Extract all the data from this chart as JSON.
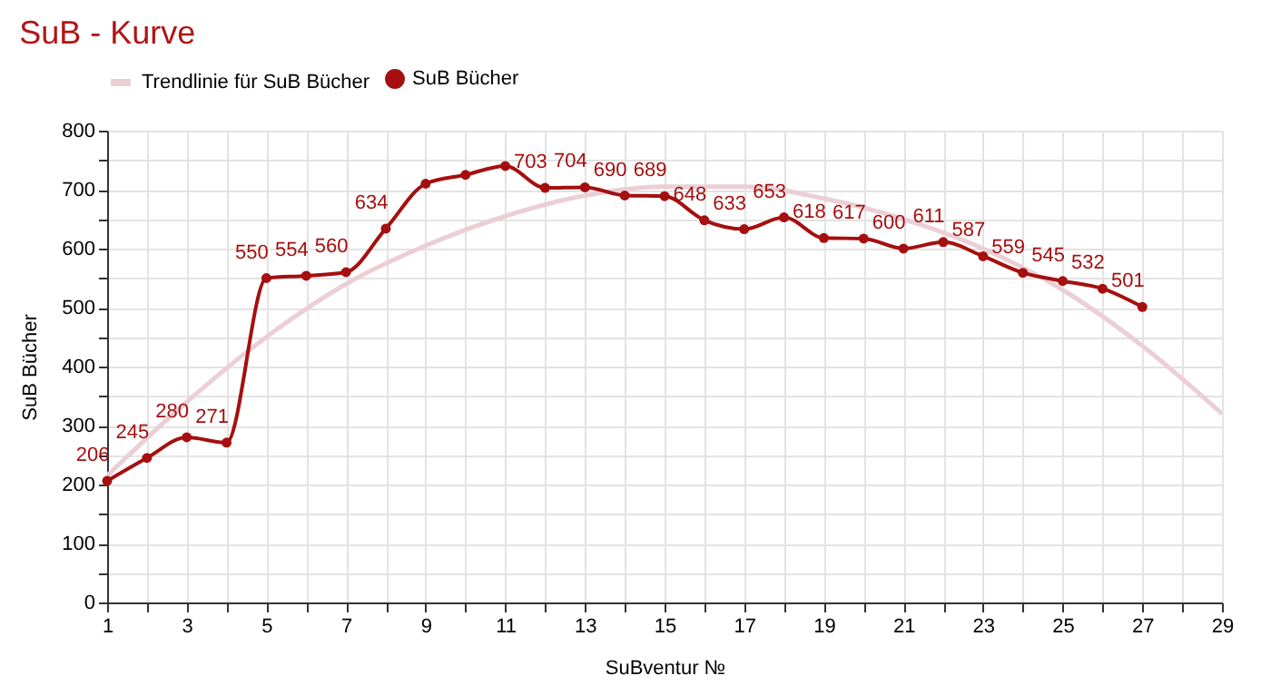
{
  "chart_data": {
    "type": "line",
    "title": "SuB - Kurve",
    "xlabel": "SuBventur №",
    "ylabel": "SuB Bücher",
    "x": [
      1,
      2,
      3,
      4,
      5,
      6,
      7,
      8,
      9,
      10,
      11,
      12,
      13,
      14,
      15,
      16,
      17,
      18,
      19,
      20,
      21,
      22,
      23,
      24,
      25,
      26,
      27
    ],
    "series": [
      {
        "name": "SuB Bücher",
        "color": "#a50f0f",
        "marker": "circle",
        "values": [
          206,
          245,
          280,
          271,
          550,
          554,
          560,
          634,
          710,
          725,
          740,
          703,
          704,
          690,
          689,
          648,
          633,
          653,
          618,
          617,
          600,
          611,
          587,
          559,
          545,
          532,
          501
        ],
        "value_labels": [
          "206",
          "245",
          "280",
          "271",
          "550",
          "554",
          "560",
          "634",
          null,
          null,
          null,
          "703",
          "704",
          "690",
          "689",
          "648",
          "633",
          "653",
          "618",
          "617",
          "600",
          "611",
          "587",
          "559",
          "545",
          "532",
          "501"
        ]
      },
      {
        "name": "Trendlinie für SuB Bücher",
        "color": "#ebcfd5",
        "marker": "none",
        "x": [
          1,
          3,
          5,
          7,
          9,
          11,
          13,
          15,
          17,
          19,
          21,
          23,
          25,
          27,
          29
        ],
        "values": [
          215,
          340,
          450,
          540,
          605,
          655,
          690,
          705,
          705,
          685,
          650,
          600,
          530,
          435,
          320
        ]
      }
    ],
    "xlim": [
      1,
      29
    ],
    "xticks": [
      1,
      {
        "value": 2,
        "label": null
      },
      3,
      {
        "value": 4,
        "label": null
      },
      5,
      {
        "value": 6,
        "label": null
      },
      7,
      {
        "value": 8,
        "label": null
      },
      9,
      {
        "value": 10,
        "label": null
      },
      11,
      {
        "value": 12,
        "label": null
      },
      13,
      {
        "value": 14,
        "label": null
      },
      15,
      {
        "value": 16,
        "label": null
      },
      17,
      {
        "value": 18,
        "label": null
      },
      19,
      {
        "value": 20,
        "label": null
      },
      21,
      {
        "value": 22,
        "label": null
      },
      23,
      {
        "value": 24,
        "label": null
      },
      25,
      {
        "value": 26,
        "label": null
      },
      27,
      {
        "value": 28,
        "label": null
      },
      29
    ],
    "ylim": [
      0,
      800
    ],
    "yticks": [
      0,
      {
        "value": 50,
        "label": null
      },
      100,
      {
        "value": 150,
        "label": null
      },
      200,
      {
        "value": 250,
        "label": null
      },
      300,
      {
        "value": 350,
        "label": null
      },
      400,
      {
        "value": 450,
        "label": null
      },
      500,
      {
        "value": 550,
        "label": null
      },
      600,
      {
        "value": 650,
        "label": null
      },
      700,
      {
        "value": 750,
        "label": null
      },
      800
    ],
    "grid": true,
    "legend": "top",
    "line_style": "solid"
  }
}
